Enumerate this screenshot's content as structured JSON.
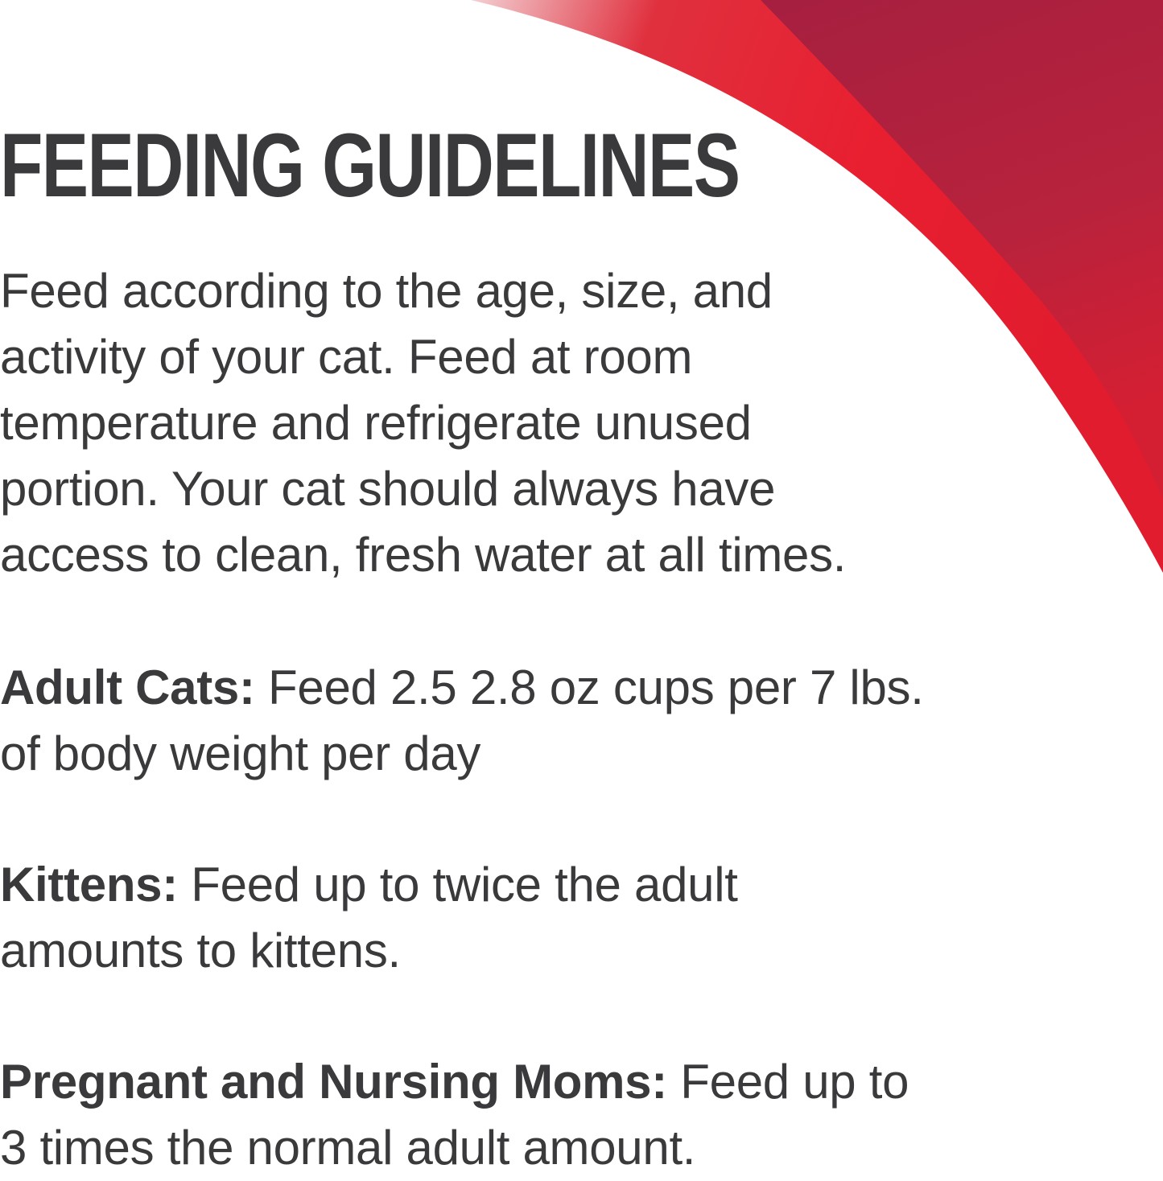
{
  "title": "FEEDING GUIDELINES",
  "intro": {
    "lines": [
      "Feed according to the age, size, and",
      "activity of your cat. Feed at room",
      "temperature and refrigerate unused",
      "portion. Your cat should always have",
      "access to clean, fresh water at all times."
    ]
  },
  "adult": {
    "label": "Adult Cats:",
    "line1": " Feed 2.5 2.8 oz cups per 7 lbs.",
    "line2": "of body weight per day"
  },
  "kittens": {
    "label": "Kittens:",
    "line1": " Feed up to twice the adult",
    "line2": "amounts to kittens."
  },
  "pregnant": {
    "label": "Pregnant and Nursing Moms:",
    "line1": " Feed up to",
    "line2": "3 times the normal adult amount."
  },
  "colors": {
    "text": "#3a3a3c",
    "red": "#e81f30",
    "dark_red": "#a61f40"
  }
}
